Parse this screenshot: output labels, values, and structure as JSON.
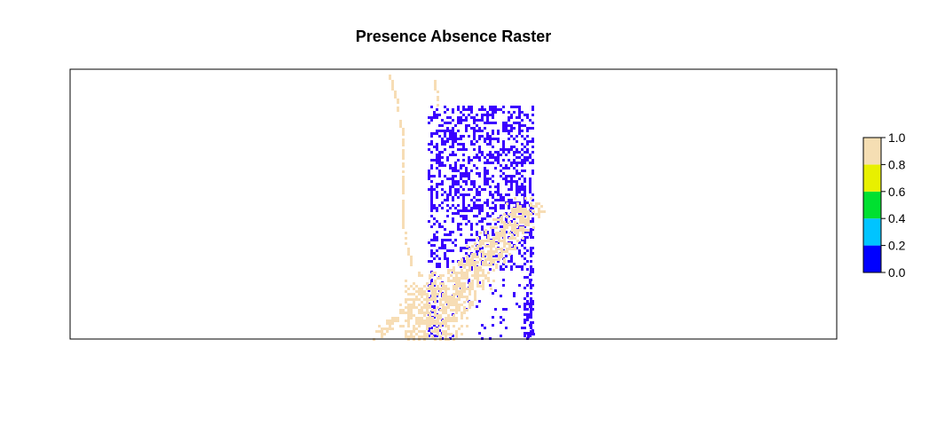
{
  "title": "Presence Absence Raster",
  "chart_data": {
    "type": "heatmap",
    "title": "Presence Absence Raster",
    "xlabel": "",
    "ylabel": "",
    "value_range": [
      0.0,
      1.0
    ],
    "classes": [
      {
        "range": [
          0.0,
          0.2
        ],
        "color": "#0000FF"
      },
      {
        "range": [
          0.2,
          0.4
        ],
        "color": "#00C4FF"
      },
      {
        "range": [
          0.4,
          0.6
        ],
        "color": "#00E030"
      },
      {
        "range": [
          0.6,
          0.8
        ],
        "color": "#E8F000"
      },
      {
        "range": [
          0.8,
          1.0
        ],
        "color": "#F5DEB3"
      }
    ],
    "colorbar_ticks": [
      "0.0",
      "0.2",
      "0.4",
      "0.6",
      "0.8",
      "1.0"
    ],
    "values_present": [
      0.0,
      1.0
    ],
    "absence_color": "#3A00FF",
    "presence_color": "#F7DDB5",
    "legend_position": "right"
  }
}
